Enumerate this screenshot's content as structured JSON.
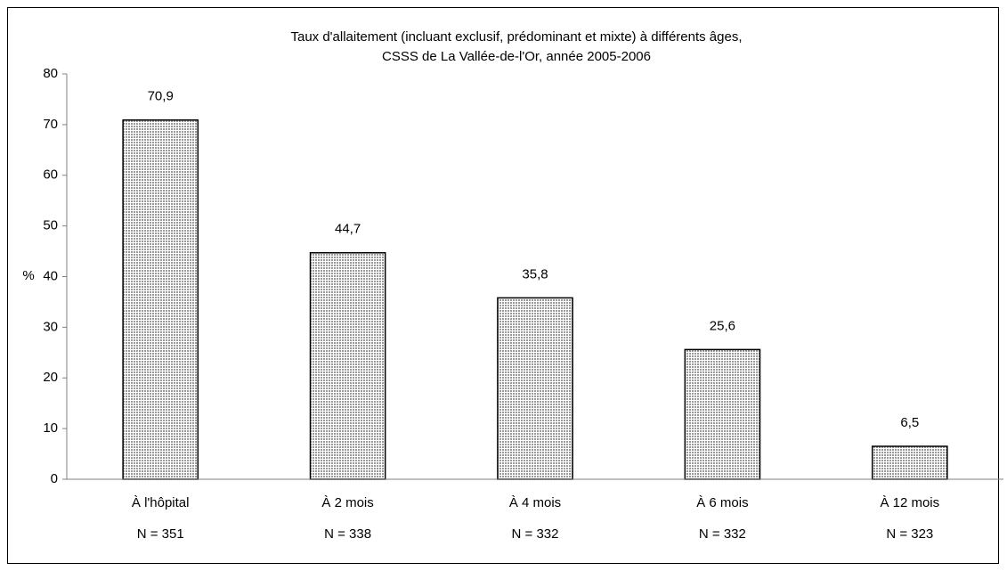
{
  "chart_data": {
    "type": "bar",
    "title": "Taux d'allaitement (incluant exclusif, prédominant et mixte) à différents âges,",
    "subtitle": "CSSS de La Vallée-de-l'Or, année 2005-2006",
    "ylabel": "%",
    "categories": [
      "À l'hôpital",
      "À 2 mois",
      "À 4 mois",
      "À 6 mois",
      "À 12 mois"
    ],
    "category_notes": [
      "N = 351",
      "N = 338",
      "N = 332",
      "N = 332",
      "N = 323"
    ],
    "values": [
      70.9,
      44.7,
      35.8,
      25.6,
      6.5
    ],
    "value_labels": [
      "70,9",
      "44,7",
      "35,8",
      "25,6",
      "6,5"
    ],
    "color": "#c8c8c8",
    "ylim": [
      0,
      80
    ],
    "yticks": [
      0,
      10,
      20,
      30,
      40,
      50,
      60,
      70,
      80
    ],
    "grid": false
  }
}
